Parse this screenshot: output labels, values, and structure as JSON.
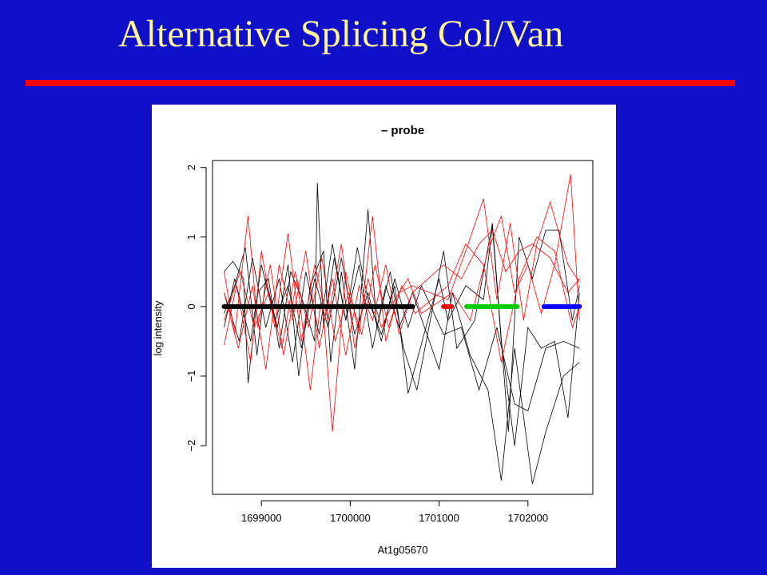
{
  "slide": {
    "title": "Alternative Splicing Col/Van"
  },
  "colors": {
    "background": "#1010c8",
    "title_text": "#fff59d",
    "title_rule": "#ff0000",
    "panel": "#ffffff"
  },
  "chart_data": {
    "type": "line",
    "title": "– probe",
    "xlabel": "At1g05670",
    "ylabel": "log intensity",
    "xlim": [
      1698450,
      1702730
    ],
    "ylim": [
      -2.7,
      2.1
    ],
    "xticks": [
      1699000,
      1700000,
      1701000,
      1702000
    ],
    "xtick_labels": [
      "1699000",
      "1700000",
      "1701000",
      "1702000"
    ],
    "yticks": [
      -2,
      -1,
      0,
      1,
      2
    ],
    "ytick_labels": [
      "−2",
      "−1",
      "0",
      "1",
      "2"
    ],
    "grid": false,
    "probe_segments": [
      {
        "color": "#000000",
        "x_start": 1698580,
        "x_end": 1700700,
        "y": 0
      },
      {
        "color": "#ff0000",
        "x_start": 1701050,
        "x_end": 1701140,
        "y": 0
      },
      {
        "color": "#00cc00",
        "x_start": 1701310,
        "x_end": 1701880,
        "y": 0
      },
      {
        "color": "#0000ff",
        "x_start": 1702180,
        "x_end": 1702580,
        "y": 0
      }
    ],
    "series": [
      {
        "color": "#000000",
        "x": [
          1698580,
          1698680,
          1698800,
          1698850,
          1698960,
          1699080,
          1699200,
          1699330,
          1699460,
          1699600,
          1699630,
          1699700,
          1699820,
          1699950,
          1700080,
          1700200,
          1700350,
          1700500,
          1700650,
          1701000,
          1701100,
          1701300,
          1701500,
          1701600,
          1701700,
          1701850,
          1702000,
          1702150,
          1702300,
          1702450,
          1702580
        ],
        "y": [
          0.5,
          0.65,
          0.4,
          -1.1,
          0.2,
          0.4,
          -0.6,
          0.5,
          0.1,
          -0.5,
          1.78,
          -0.3,
          0.7,
          -0.2,
          0.85,
          0.1,
          -0.4,
          0.3,
          -1.25,
          0.4,
          -0.2,
          0.3,
          0.1,
          1.15,
          -0.5,
          -2.0,
          -0.3,
          -0.6,
          -0.5,
          -1.6,
          0.2
        ]
      },
      {
        "color": "#000000",
        "x": [
          1698580,
          1698700,
          1698820,
          1698950,
          1699050,
          1699180,
          1699300,
          1699420,
          1699550,
          1699700,
          1699780,
          1699900,
          1700050,
          1700200,
          1700300,
          1700450,
          1700600,
          1700750,
          1701050,
          1701200,
          1701400,
          1701600,
          1701780,
          1701900,
          1702050,
          1702200,
          1702350,
          1702500,
          1702580
        ],
        "y": [
          -0.1,
          0.3,
          0.85,
          -0.7,
          0.4,
          -0.3,
          0.6,
          -1.0,
          0.3,
          0.8,
          -0.8,
          0.5,
          -0.9,
          1.4,
          -0.3,
          0.5,
          -0.6,
          -1.2,
          0.8,
          -0.6,
          -0.2,
          1.2,
          -1.8,
          1.0,
          0.4,
          1.1,
          1.1,
          -0.2,
          0.3
        ]
      },
      {
        "color": "#000000",
        "x": [
          1698580,
          1698750,
          1698900,
          1699050,
          1699200,
          1699350,
          1699500,
          1699650,
          1699800,
          1699950,
          1700100,
          1700250,
          1700400,
          1700550,
          1700700,
          1701000,
          1701150,
          1701350,
          1701550,
          1701700,
          1701850,
          1702050,
          1702200,
          1702400,
          1702580
        ],
        "y": [
          0.2,
          -0.5,
          0.7,
          -0.3,
          0.4,
          -0.8,
          0.5,
          -0.4,
          0.9,
          -0.2,
          0.6,
          -0.6,
          0.3,
          -0.3,
          0.2,
          -0.9,
          0.2,
          -0.7,
          -1.2,
          -2.5,
          -0.6,
          -2.55,
          -1.8,
          -1.0,
          -0.8
        ]
      },
      {
        "color": "#000000",
        "x": [
          1698580,
          1698700,
          1698880,
          1699000,
          1699150,
          1699300,
          1699450,
          1699600,
          1699750,
          1699900,
          1700050,
          1700200,
          1700350,
          1700500,
          1700650,
          1700800,
          1701050,
          1701250,
          1701450,
          1701650,
          1701850,
          1702000,
          1702200,
          1702400,
          1702580
        ],
        "y": [
          -0.3,
          0.4,
          -0.5,
          0.6,
          -0.2,
          0.3,
          -0.6,
          0.4,
          -0.3,
          0.7,
          -0.4,
          0.2,
          -0.5,
          0.4,
          -0.3,
          0.3,
          -0.4,
          -0.3,
          -1.2,
          -0.3,
          -1.4,
          -1.5,
          -0.6,
          -0.5,
          -0.6
        ]
      },
      {
        "color": "#ff0000",
        "x": [
          1698580,
          1698700,
          1698850,
          1698960,
          1699100,
          1699250,
          1699400,
          1699550,
          1699680,
          1699800,
          1699950,
          1700100,
          1700250,
          1700400,
          1700550,
          1700700,
          1701100,
          1701300,
          1701500,
          1701650,
          1701800,
          1701950,
          1702100,
          1702250,
          1702450,
          1702580
        ],
        "y": [
          0.5,
          -0.4,
          1.3,
          -0.3,
          0.6,
          -0.7,
          0.4,
          -1.2,
          0.2,
          -1.8,
          0.5,
          -0.4,
          1.3,
          -0.5,
          0.2,
          0.3,
          0.1,
          0.8,
          1.55,
          0.1,
          1.2,
          -0.2,
          0.9,
          1.5,
          0.6,
          0.35
        ]
      },
      {
        "color": "#ff0000",
        "x": [
          1698580,
          1698720,
          1698880,
          1699000,
          1699150,
          1699300,
          1699450,
          1699600,
          1699750,
          1699900,
          1700050,
          1700200,
          1700350,
          1700500,
          1700650,
          1700800,
          1701150,
          1701350,
          1701550,
          1701700,
          1701850,
          1702000,
          1702150,
          1702300,
          1702480,
          1702580
        ],
        "y": [
          -0.55,
          0.3,
          -0.8,
          0.8,
          -0.3,
          1.05,
          -0.5,
          0.6,
          -0.2,
          0.9,
          -0.6,
          0.4,
          -0.3,
          0.1,
          0.4,
          -0.1,
          0.2,
          -0.2,
          0.8,
          1.3,
          0.2,
          0.6,
          -0.1,
          0.6,
          1.9,
          -0.2
        ]
      },
      {
        "color": "#ff0000",
        "x": [
          1698580,
          1698740,
          1698900,
          1699050,
          1699200,
          1699350,
          1699500,
          1699650,
          1699800,
          1699950,
          1700100,
          1700250,
          1700400,
          1700550,
          1700700,
          1701050,
          1701250,
          1701450,
          1701600,
          1701750,
          1701900,
          1702050,
          1702250,
          1702450,
          1702580
        ],
        "y": [
          0.2,
          -0.6,
          0.3,
          -0.9,
          0.6,
          -0.2,
          0.8,
          -0.6,
          0.4,
          -0.7,
          0.3,
          -0.2,
          0.6,
          -0.4,
          0.2,
          0.6,
          0.4,
          0.9,
          1.1,
          0.5,
          0.8,
          0.9,
          0.7,
          0.2,
          0.4
        ]
      },
      {
        "color": "#ff0000",
        "x": [
          1698580,
          1698760,
          1698920,
          1699080,
          1699230,
          1699380,
          1699530,
          1699680,
          1699830,
          1699980,
          1700130,
          1700280,
          1700430,
          1700580,
          1700730,
          1701100,
          1701300,
          1701500,
          1701700,
          1701900,
          1702100,
          1702300,
          1702500,
          1702580
        ],
        "y": [
          -0.2,
          0.5,
          -0.3,
          0.2,
          -0.6,
          0.5,
          -0.3,
          0.7,
          -0.5,
          0.2,
          -0.4,
          0.6,
          -0.3,
          0.3,
          -0.1,
          0.3,
          0.9,
          0.6,
          -0.8,
          0.4,
          1.0,
          0.8,
          -0.3,
          0.0
        ]
      }
    ]
  }
}
